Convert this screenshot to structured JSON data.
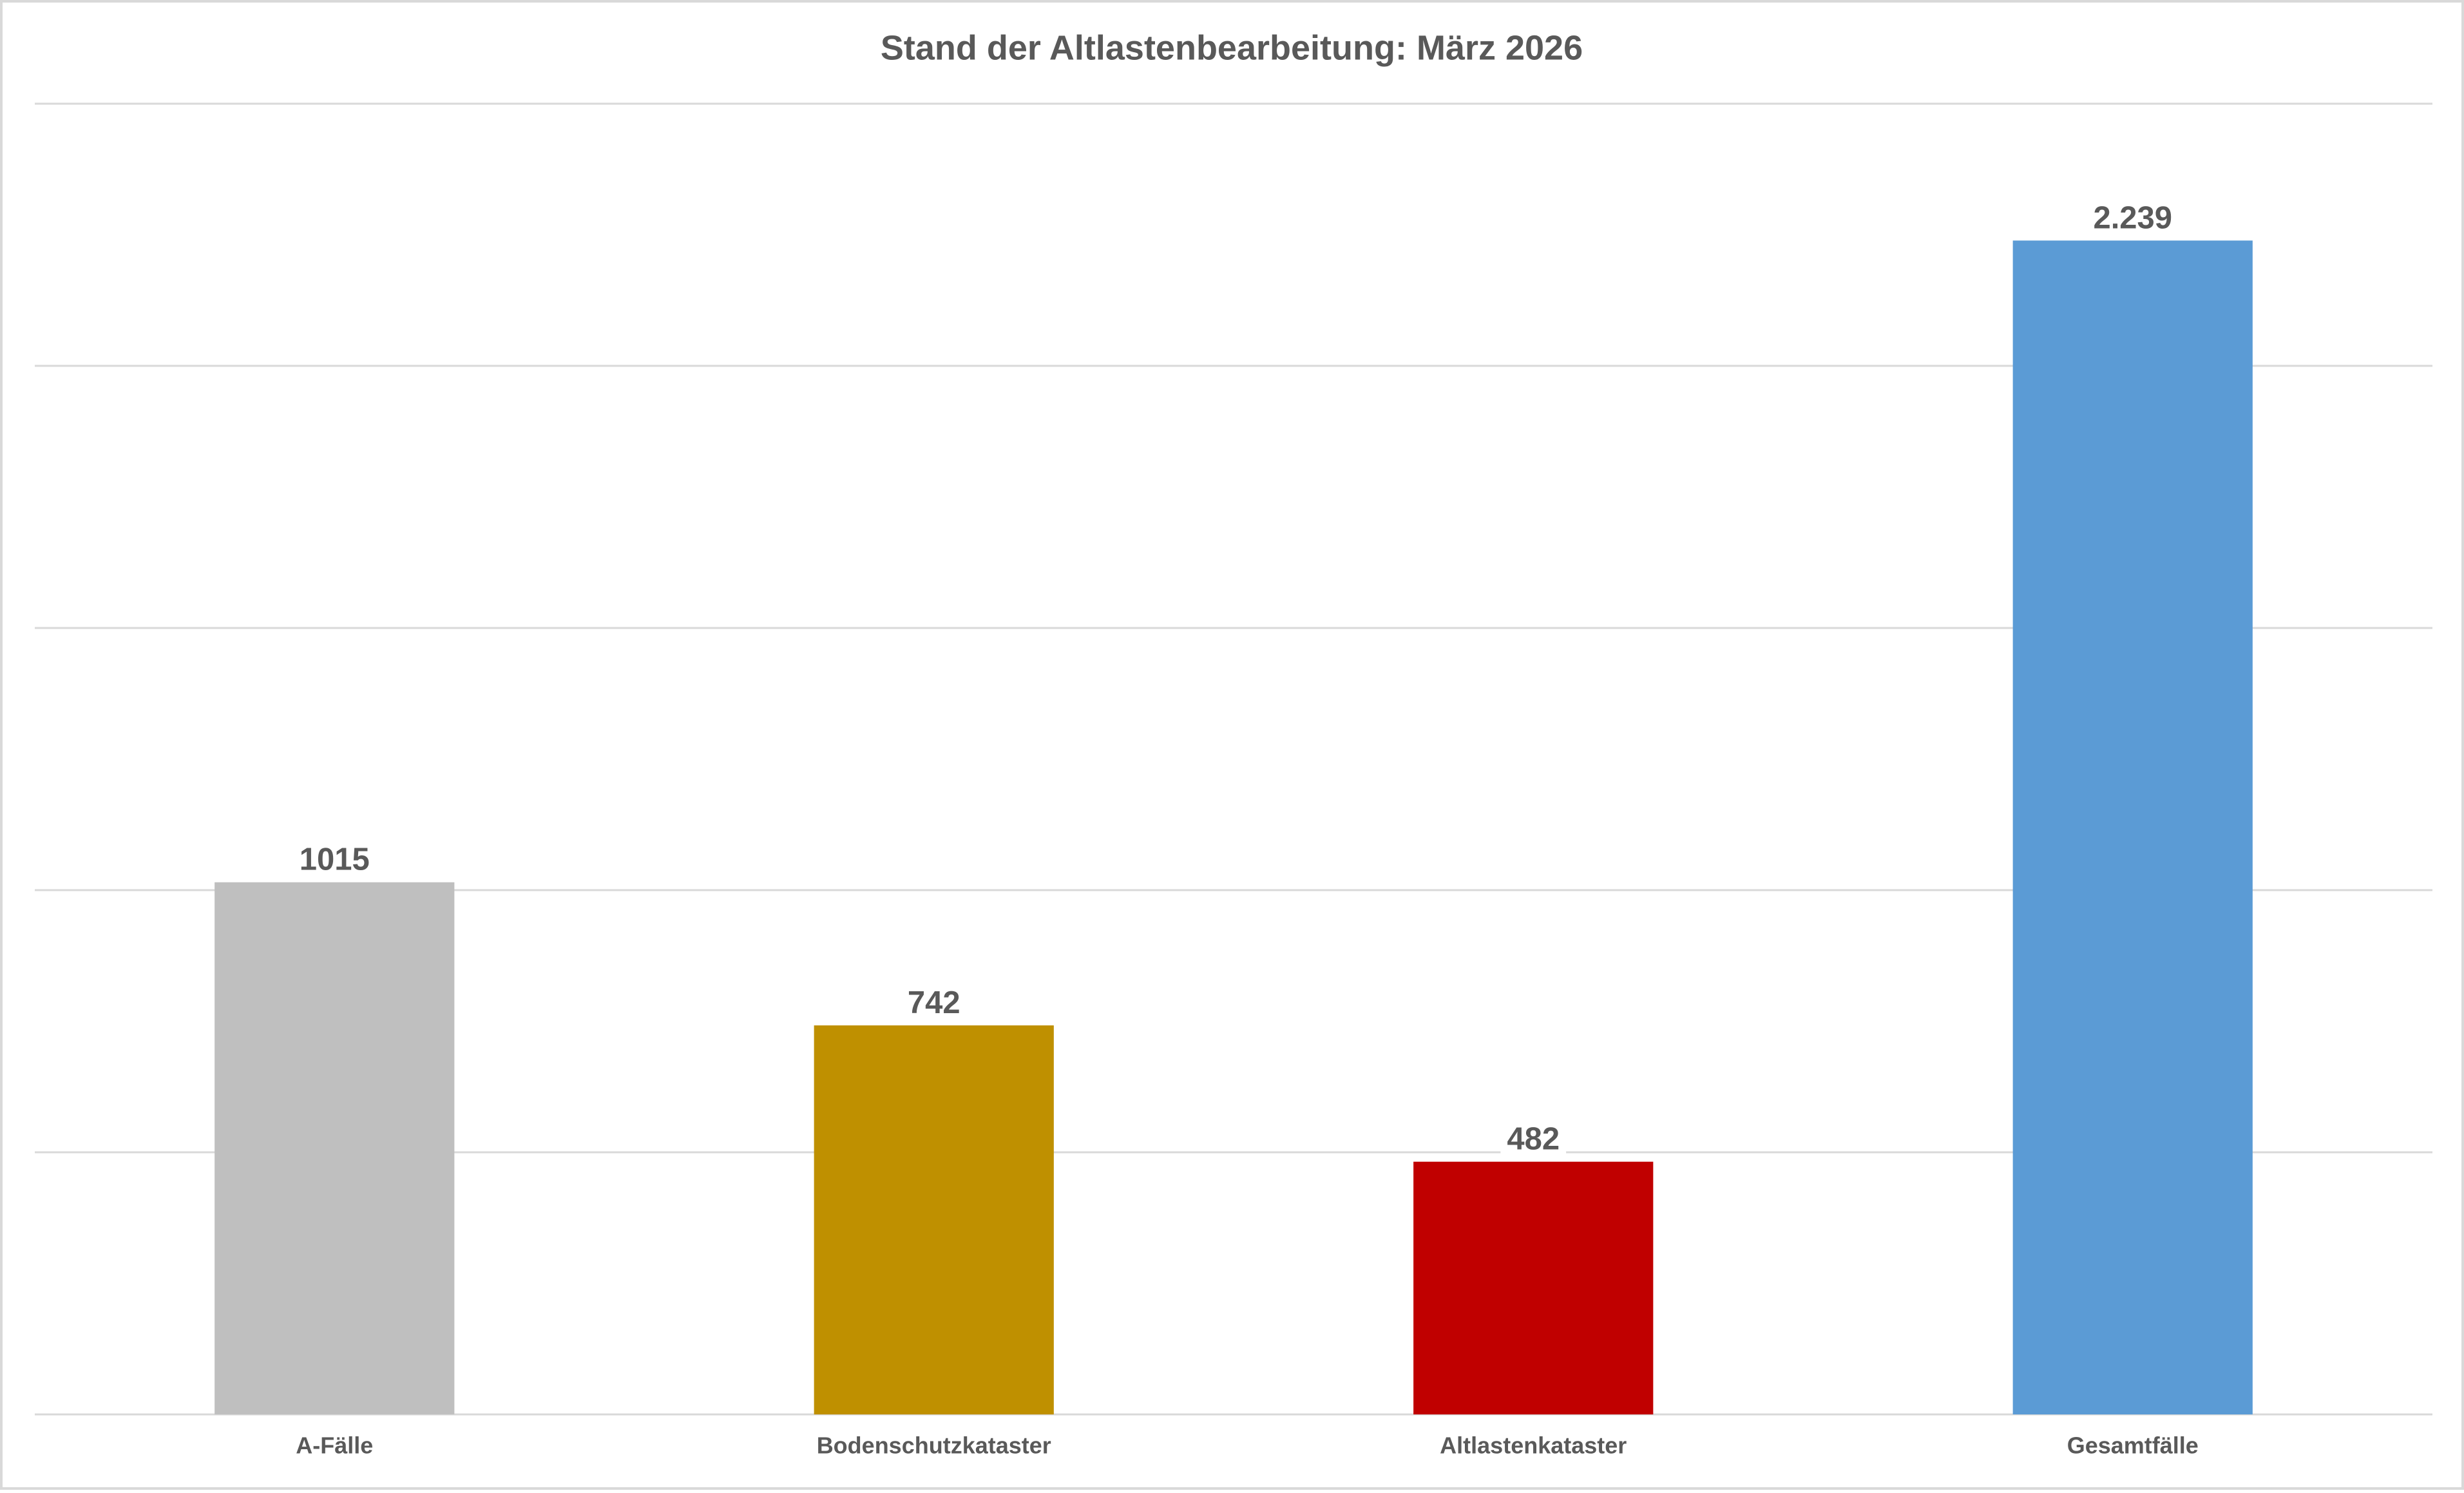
{
  "chart_data": {
    "type": "bar",
    "title": "Stand der Altlastenbearbeitung: März 2026",
    "categories": [
      "A-Fälle",
      "Bodenschutzkataster",
      "Altlastenkataster",
      "Gesamtfälle"
    ],
    "values": [
      1015,
      742,
      482,
      2239
    ],
    "value_labels": [
      "1015",
      "742",
      "482",
      "2.239"
    ],
    "colors": [
      "#bfbfbf",
      "#bf9000",
      "#c00000",
      "#5b9bd5"
    ],
    "ylim": [
      0,
      2500
    ],
    "yticks": [
      0,
      500,
      1000,
      1500,
      2000,
      2500
    ],
    "grid": true
  }
}
